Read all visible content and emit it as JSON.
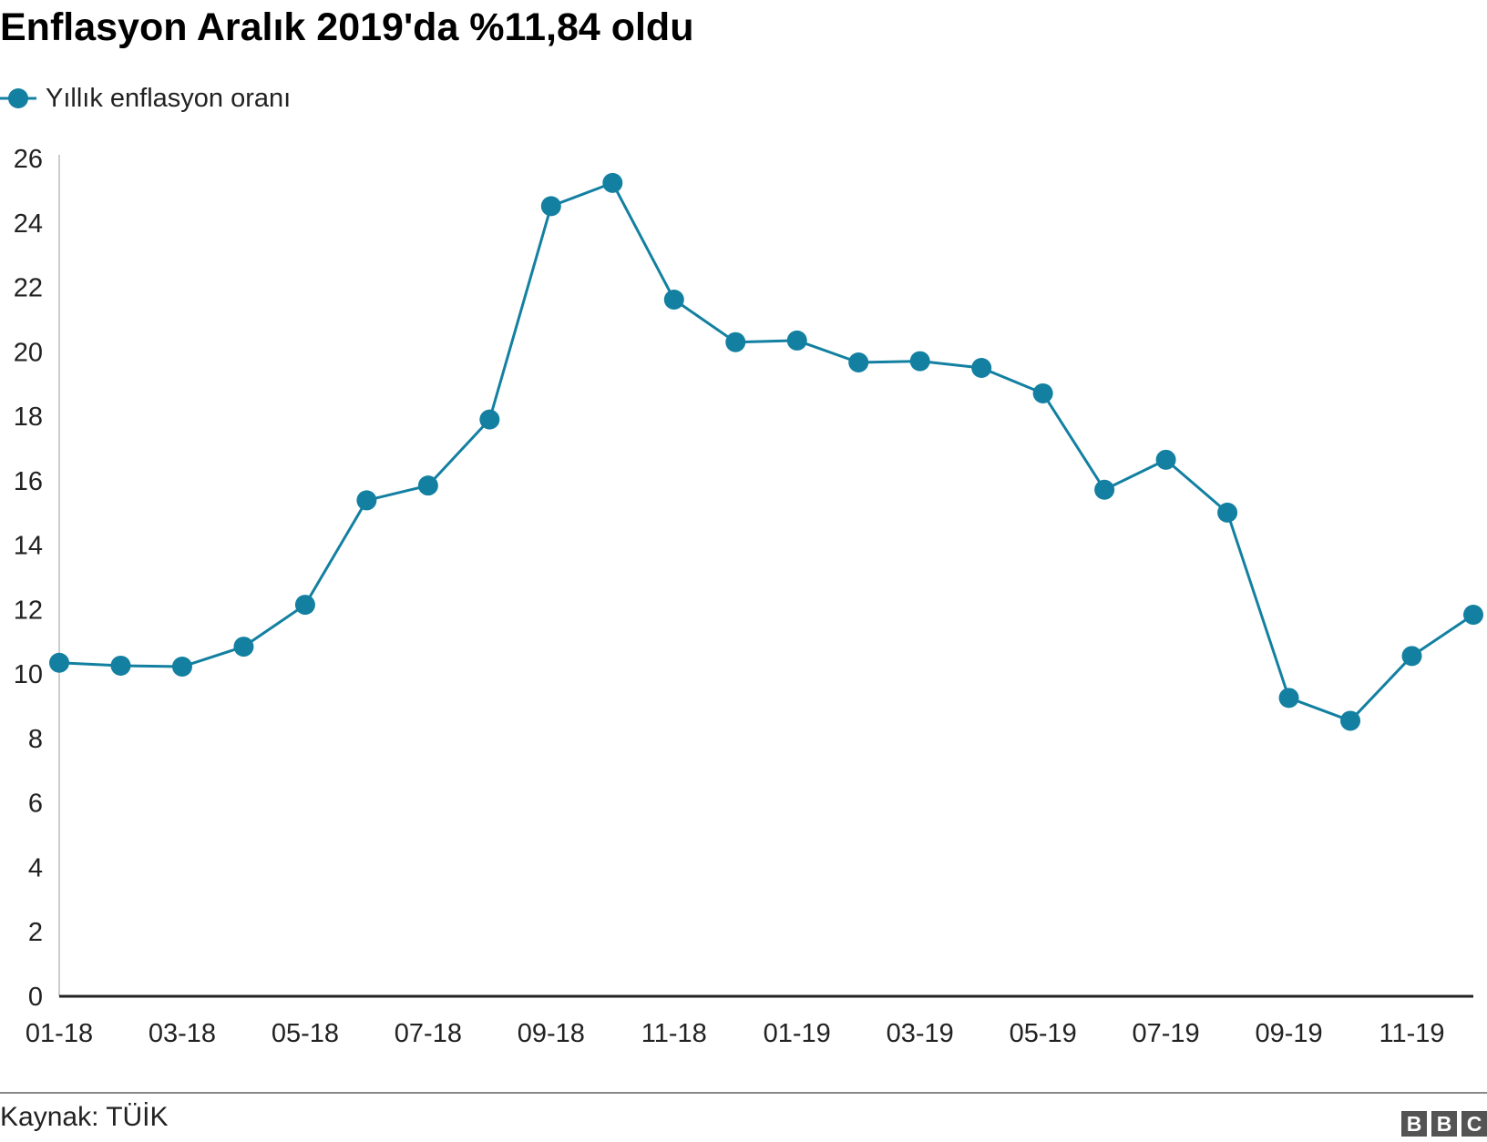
{
  "title": "Enflasyon Aralık 2019'da %11,84 oldu",
  "source": "Kaynak: TÜİK",
  "logo": [
    "B",
    "B",
    "C"
  ],
  "colors": {
    "series": "#1380A1",
    "axis": "#222222",
    "y_axis_line": "#cccccc",
    "footer_rule": "#888888",
    "logo_block": "#545454"
  },
  "chart_data": {
    "type": "line",
    "x": [
      "01-18",
      "02-18",
      "03-18",
      "04-18",
      "05-18",
      "06-18",
      "07-18",
      "08-18",
      "09-18",
      "10-18",
      "11-18",
      "12-18",
      "01-19",
      "02-19",
      "03-19",
      "04-19",
      "05-19",
      "06-19",
      "07-19",
      "08-19",
      "09-19",
      "10-19",
      "11-19",
      "12-19"
    ],
    "x_tick_labels": [
      "01-18",
      "03-18",
      "05-18",
      "07-18",
      "09-18",
      "11-18",
      "01-19",
      "03-19",
      "05-19",
      "07-19",
      "09-19",
      "11-19"
    ],
    "series": [
      {
        "name": "Yıllık enflasyon oranı",
        "values": [
          10.35,
          10.26,
          10.23,
          10.85,
          12.15,
          15.39,
          15.85,
          17.9,
          24.52,
          25.24,
          21.62,
          20.3,
          20.35,
          19.67,
          19.71,
          19.5,
          18.71,
          15.72,
          16.65,
          15.01,
          9.26,
          8.55,
          10.56,
          11.84
        ]
      }
    ],
    "ylim": [
      0,
      26
    ],
    "y_ticks": [
      0,
      2,
      4,
      6,
      8,
      10,
      12,
      14,
      16,
      18,
      20,
      22,
      24,
      26
    ],
    "legend": "top-left",
    "grid": false
  }
}
